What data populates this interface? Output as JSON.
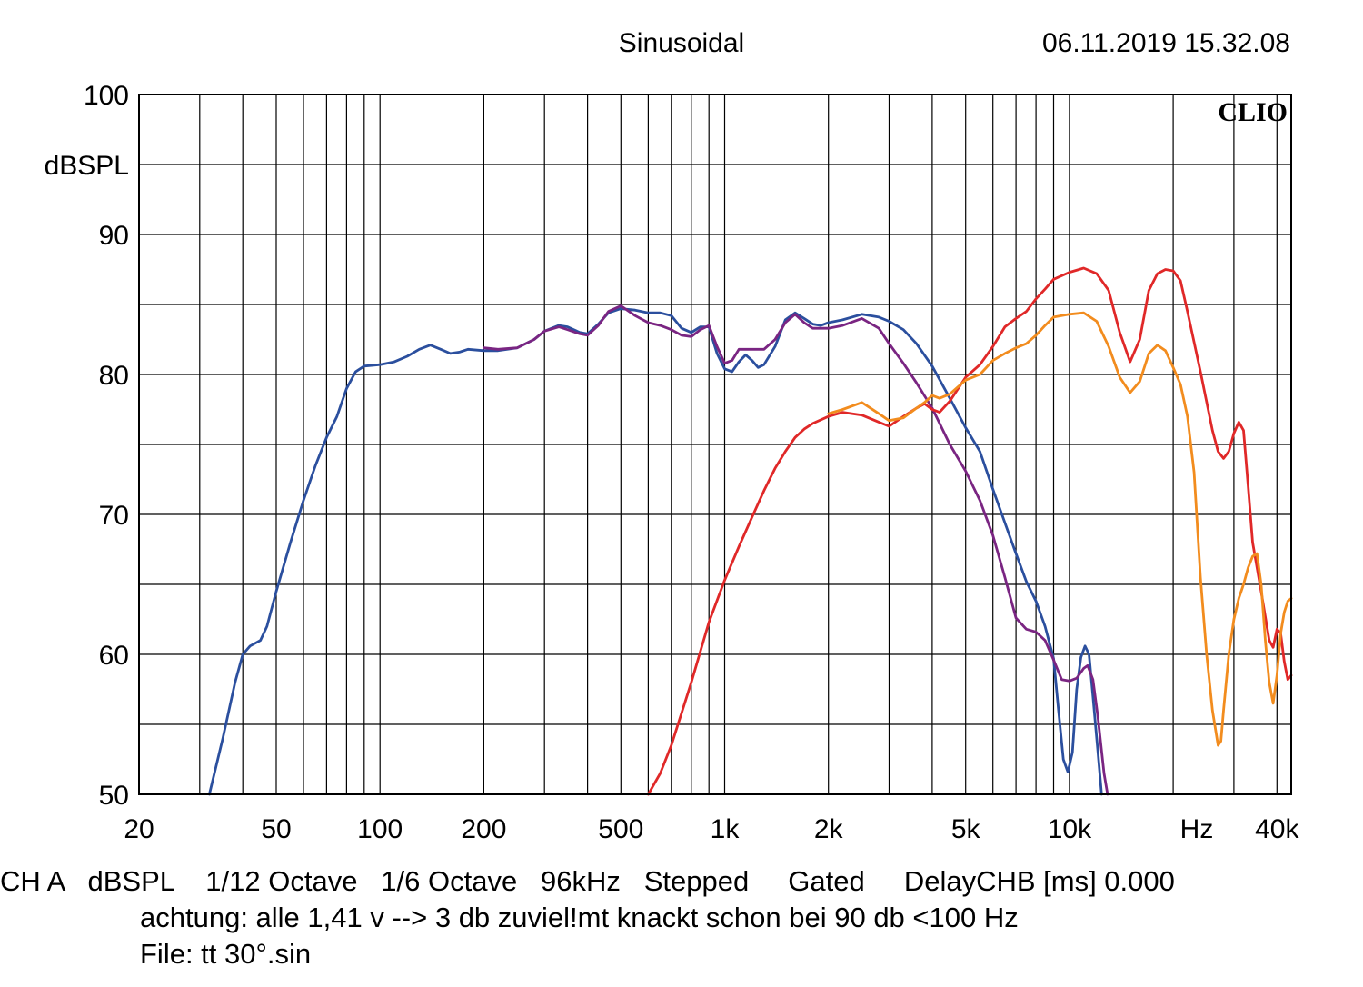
{
  "header": {
    "mode": "Sinusoidal",
    "timestamp": "06.11.2019 15.32.08"
  },
  "logo_text": "CLIO",
  "chart_data": {
    "type": "line",
    "x_scale": "log",
    "xlim": [
      20,
      44000
    ],
    "ylim": [
      50,
      100
    ],
    "ylabel": "dBSPL",
    "xunit": "Hz",
    "y_ticks": [
      {
        "value": 100,
        "label": "100"
      },
      {
        "value": 90,
        "label": "90"
      },
      {
        "value": 80,
        "label": "80"
      },
      {
        "value": 70,
        "label": "70"
      },
      {
        "value": 60,
        "label": "60"
      },
      {
        "value": 50,
        "label": "50"
      }
    ],
    "y_gridlines": [
      50,
      55,
      60,
      65,
      70,
      75,
      80,
      85,
      90,
      95,
      100
    ],
    "x_ticks": [
      {
        "value": 20,
        "label": "20"
      },
      {
        "value": 50,
        "label": "50"
      },
      {
        "value": 100,
        "label": "100"
      },
      {
        "value": 200,
        "label": "200"
      },
      {
        "value": 500,
        "label": "500"
      },
      {
        "value": 1000,
        "label": "1k"
      },
      {
        "value": 2000,
        "label": "2k"
      },
      {
        "value": 5000,
        "label": "5k"
      },
      {
        "value": 10000,
        "label": "10k"
      },
      {
        "value": 40000,
        "label": "40k"
      }
    ],
    "x_gridlines": [
      20,
      30,
      40,
      50,
      60,
      70,
      80,
      90,
      100,
      200,
      300,
      400,
      500,
      600,
      700,
      800,
      900,
      1000,
      2000,
      3000,
      4000,
      5000,
      6000,
      7000,
      8000,
      9000,
      10000,
      20000,
      30000,
      40000
    ],
    "series": [
      {
        "color": "#2b4f9e",
        "points": [
          [
            32,
            50
          ],
          [
            35,
            54
          ],
          [
            38,
            58
          ],
          [
            40,
            60
          ],
          [
            42,
            60.6
          ],
          [
            45,
            61
          ],
          [
            47,
            62
          ],
          [
            50,
            64.5
          ],
          [
            55,
            68
          ],
          [
            60,
            71
          ],
          [
            65,
            73.5
          ],
          [
            70,
            75.5
          ],
          [
            75,
            77
          ],
          [
            80,
            79
          ],
          [
            85,
            80.2
          ],
          [
            90,
            80.6
          ],
          [
            100,
            80.7
          ],
          [
            110,
            80.9
          ],
          [
            120,
            81.3
          ],
          [
            130,
            81.8
          ],
          [
            140,
            82.1
          ],
          [
            150,
            81.8
          ],
          [
            160,
            81.5
          ],
          [
            170,
            81.6
          ],
          [
            180,
            81.8
          ],
          [
            200,
            81.7
          ],
          [
            220,
            81.7
          ],
          [
            250,
            81.9
          ],
          [
            280,
            82.5
          ],
          [
            300,
            83.1
          ],
          [
            330,
            83.5
          ],
          [
            350,
            83.4
          ],
          [
            380,
            83
          ],
          [
            400,
            82.9
          ],
          [
            430,
            83.6
          ],
          [
            460,
            84.4
          ],
          [
            500,
            84.7
          ],
          [
            550,
            84.6
          ],
          [
            600,
            84.4
          ],
          [
            650,
            84.4
          ],
          [
            700,
            84.2
          ],
          [
            750,
            83.3
          ],
          [
            800,
            83
          ],
          [
            850,
            83.4
          ],
          [
            900,
            83.4
          ],
          [
            950,
            81.5
          ],
          [
            1000,
            80.4
          ],
          [
            1050,
            80.2
          ],
          [
            1100,
            80.9
          ],
          [
            1150,
            81.4
          ],
          [
            1200,
            81
          ],
          [
            1250,
            80.5
          ],
          [
            1300,
            80.7
          ],
          [
            1400,
            82
          ],
          [
            1500,
            83.9
          ],
          [
            1600,
            84.4
          ],
          [
            1700,
            84
          ],
          [
            1800,
            83.6
          ],
          [
            1900,
            83.5
          ],
          [
            2000,
            83.7
          ],
          [
            2200,
            83.9
          ],
          [
            2500,
            84.3
          ],
          [
            2800,
            84.1
          ],
          [
            3000,
            83.8
          ],
          [
            3300,
            83.2
          ],
          [
            3600,
            82.2
          ],
          [
            4000,
            80.6
          ],
          [
            4500,
            78.3
          ],
          [
            5000,
            76.2
          ],
          [
            5500,
            74.5
          ],
          [
            6000,
            71.8
          ],
          [
            6500,
            69.4
          ],
          [
            7000,
            67.2
          ],
          [
            7500,
            65.2
          ],
          [
            8000,
            63.8
          ],
          [
            8500,
            62
          ],
          [
            9000,
            59.7
          ],
          [
            9300,
            56
          ],
          [
            9600,
            52.5
          ],
          [
            9900,
            51.6
          ],
          [
            10200,
            53
          ],
          [
            10500,
            57.5
          ],
          [
            10800,
            59.8
          ],
          [
            11100,
            60.6
          ],
          [
            11400,
            60
          ],
          [
            11700,
            57
          ],
          [
            12100,
            53
          ],
          [
            12400,
            50
          ]
        ]
      },
      {
        "color": "#7a2582",
        "points": [
          [
            200,
            81.9
          ],
          [
            220,
            81.8
          ],
          [
            250,
            81.9
          ],
          [
            280,
            82.5
          ],
          [
            300,
            83.1
          ],
          [
            330,
            83.4
          ],
          [
            350,
            83.2
          ],
          [
            380,
            82.9
          ],
          [
            400,
            82.8
          ],
          [
            430,
            83.5
          ],
          [
            460,
            84.5
          ],
          [
            500,
            84.9
          ],
          [
            550,
            84.2
          ],
          [
            600,
            83.7
          ],
          [
            650,
            83.5
          ],
          [
            700,
            83.2
          ],
          [
            750,
            82.8
          ],
          [
            800,
            82.7
          ],
          [
            850,
            83.2
          ],
          [
            900,
            83.5
          ],
          [
            950,
            82
          ],
          [
            1000,
            80.8
          ],
          [
            1050,
            81
          ],
          [
            1100,
            81.8
          ],
          [
            1200,
            81.8
          ],
          [
            1300,
            81.8
          ],
          [
            1400,
            82.5
          ],
          [
            1500,
            83.7
          ],
          [
            1600,
            84.3
          ],
          [
            1700,
            83.7
          ],
          [
            1800,
            83.3
          ],
          [
            2000,
            83.3
          ],
          [
            2200,
            83.5
          ],
          [
            2500,
            84
          ],
          [
            2800,
            83.3
          ],
          [
            3000,
            82.2
          ],
          [
            3300,
            80.8
          ],
          [
            3600,
            79.4
          ],
          [
            4000,
            77.6
          ],
          [
            4500,
            75
          ],
          [
            5000,
            73.1
          ],
          [
            5500,
            71
          ],
          [
            6000,
            68.5
          ],
          [
            6500,
            65.5
          ],
          [
            7000,
            62.6
          ],
          [
            7500,
            61.8
          ],
          [
            8000,
            61.6
          ],
          [
            8500,
            61
          ],
          [
            9000,
            59.6
          ],
          [
            9500,
            58.2
          ],
          [
            10000,
            58.1
          ],
          [
            10500,
            58.3
          ],
          [
            11000,
            59
          ],
          [
            11300,
            59.2
          ],
          [
            11700,
            58.2
          ],
          [
            12100,
            55.5
          ],
          [
            12600,
            51.5
          ],
          [
            12900,
            50
          ]
        ]
      },
      {
        "color": "#e02828",
        "points": [
          [
            600,
            50
          ],
          [
            650,
            51.5
          ],
          [
            700,
            53.5
          ],
          [
            800,
            58
          ],
          [
            900,
            62.3
          ],
          [
            1000,
            65.3
          ],
          [
            1100,
            67.7
          ],
          [
            1200,
            69.8
          ],
          [
            1300,
            71.7
          ],
          [
            1400,
            73.3
          ],
          [
            1500,
            74.5
          ],
          [
            1600,
            75.5
          ],
          [
            1700,
            76.1
          ],
          [
            1800,
            76.5
          ],
          [
            2000,
            77
          ],
          [
            2200,
            77.3
          ],
          [
            2500,
            77.1
          ],
          [
            2800,
            76.6
          ],
          [
            3000,
            76.3
          ],
          [
            3300,
            77
          ],
          [
            3600,
            77.6
          ],
          [
            3800,
            77.9
          ],
          [
            4000,
            77.5
          ],
          [
            4200,
            77.3
          ],
          [
            4500,
            78.1
          ],
          [
            5000,
            79.8
          ],
          [
            5500,
            80.7
          ],
          [
            6000,
            82
          ],
          [
            6500,
            83.4
          ],
          [
            7000,
            84
          ],
          [
            7500,
            84.5
          ],
          [
            8000,
            85.4
          ],
          [
            8500,
            86.1
          ],
          [
            9000,
            86.8
          ],
          [
            10000,
            87.3
          ],
          [
            11000,
            87.6
          ],
          [
            12000,
            87.2
          ],
          [
            13000,
            86
          ],
          [
            14000,
            83
          ],
          [
            15000,
            80.9
          ],
          [
            16000,
            82.5
          ],
          [
            17000,
            86
          ],
          [
            18000,
            87.2
          ],
          [
            19000,
            87.5
          ],
          [
            20000,
            87.4
          ],
          [
            21000,
            86.7
          ],
          [
            22000,
            84.5
          ],
          [
            24000,
            80.2
          ],
          [
            26000,
            76
          ],
          [
            27000,
            74.5
          ],
          [
            28000,
            74
          ],
          [
            29000,
            74.5
          ],
          [
            30000,
            75.8
          ],
          [
            31000,
            76.6
          ],
          [
            32000,
            76
          ],
          [
            33000,
            72
          ],
          [
            34000,
            68
          ],
          [
            36000,
            64.5
          ],
          [
            38000,
            61
          ],
          [
            39000,
            60.5
          ],
          [
            40000,
            61.8
          ],
          [
            41000,
            61.5
          ],
          [
            42000,
            59.5
          ],
          [
            43000,
            58.2
          ],
          [
            44000,
            58.5
          ]
        ]
      },
      {
        "color": "#f28c1e",
        "points": [
          [
            2000,
            77.2
          ],
          [
            2200,
            77.5
          ],
          [
            2500,
            78
          ],
          [
            2800,
            77.2
          ],
          [
            3000,
            76.7
          ],
          [
            3300,
            76.9
          ],
          [
            3600,
            77.6
          ],
          [
            3800,
            78
          ],
          [
            4000,
            78.5
          ],
          [
            4200,
            78.3
          ],
          [
            4500,
            78.6
          ],
          [
            5000,
            79.6
          ],
          [
            5500,
            80
          ],
          [
            6000,
            81
          ],
          [
            6500,
            81.5
          ],
          [
            7000,
            81.9
          ],
          [
            7500,
            82.2
          ],
          [
            8000,
            82.8
          ],
          [
            8500,
            83.5
          ],
          [
            9000,
            84.1
          ],
          [
            10000,
            84.3
          ],
          [
            11000,
            84.4
          ],
          [
            12000,
            83.8
          ],
          [
            13000,
            82
          ],
          [
            14000,
            79.8
          ],
          [
            15000,
            78.7
          ],
          [
            16000,
            79.5
          ],
          [
            17000,
            81.5
          ],
          [
            18000,
            82.1
          ],
          [
            19000,
            81.7
          ],
          [
            20000,
            80.5
          ],
          [
            21000,
            79.3
          ],
          [
            22000,
            77
          ],
          [
            23000,
            73
          ],
          [
            24000,
            65.5
          ],
          [
            25000,
            60
          ],
          [
            26000,
            56
          ],
          [
            27000,
            53.5
          ],
          [
            27500,
            53.8
          ],
          [
            28000,
            56
          ],
          [
            29000,
            60
          ],
          [
            30000,
            62.5
          ],
          [
            31000,
            64
          ],
          [
            32000,
            65
          ],
          [
            33000,
            66.2
          ],
          [
            34000,
            67
          ],
          [
            35000,
            67.2
          ],
          [
            36000,
            65
          ],
          [
            37000,
            61
          ],
          [
            38000,
            58
          ],
          [
            39000,
            56.5
          ],
          [
            40000,
            58.5
          ],
          [
            41000,
            61.5
          ],
          [
            42000,
            63
          ],
          [
            43000,
            63.8
          ],
          [
            44000,
            64
          ]
        ]
      }
    ]
  },
  "footer": {
    "line1": "CH A   dBSPL    1/12 Octave   1/6 Octave   96kHz   Stepped     Gated     DelayCHB [ms] 0.000",
    "line2": "achtung: alle 1,41 v --> 3 db zuviel!mt knackt schon bei 90 db <100 Hz",
    "line3": "File: tt 30°.sin"
  }
}
